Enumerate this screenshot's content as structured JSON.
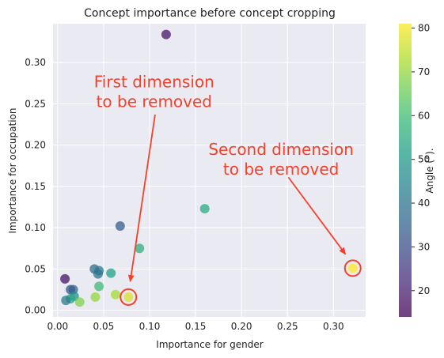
{
  "chart_data": {
    "type": "scatter",
    "title": "Concept importance before concept cropping",
    "xlabel": "Importance for gender",
    "ylabel": "Importance for occupation",
    "xlim": [
      -0.005,
      0.335
    ],
    "ylim": [
      -0.008,
      0.347
    ],
    "xticks": [
      "0.00",
      "0.05",
      "0.10",
      "0.15",
      "0.20",
      "0.25",
      "0.30"
    ],
    "yticks": [
      "0.00",
      "0.05",
      "0.10",
      "0.15",
      "0.20",
      "0.25",
      "0.30"
    ],
    "grid": true,
    "colorbar": {
      "label": "Angle (°).",
      "min": 14,
      "max": 81,
      "ticks": [
        "20",
        "30",
        "40",
        "50",
        "60",
        "70",
        "80"
      ],
      "colormap": "viridis"
    },
    "points": [
      {
        "x": 0.118,
        "y": 0.334,
        "angle": 18
      },
      {
        "x": 0.008,
        "y": 0.038,
        "angle": 17
      },
      {
        "x": 0.068,
        "y": 0.102,
        "angle": 34
      },
      {
        "x": 0.16,
        "y": 0.123,
        "angle": 55
      },
      {
        "x": 0.089,
        "y": 0.075,
        "angle": 56
      },
      {
        "x": 0.04,
        "y": 0.05,
        "angle": 38
      },
      {
        "x": 0.045,
        "y": 0.048,
        "angle": 42
      },
      {
        "x": 0.044,
        "y": 0.044,
        "angle": 40
      },
      {
        "x": 0.058,
        "y": 0.045,
        "angle": 52
      },
      {
        "x": 0.045,
        "y": 0.029,
        "angle": 60
      },
      {
        "x": 0.017,
        "y": 0.025,
        "angle": 36
      },
      {
        "x": 0.014,
        "y": 0.025,
        "angle": 33
      },
      {
        "x": 0.018,
        "y": 0.017,
        "angle": 48
      },
      {
        "x": 0.014,
        "y": 0.014,
        "angle": 54
      },
      {
        "x": 0.009,
        "y": 0.012,
        "angle": 42
      },
      {
        "x": 0.024,
        "y": 0.01,
        "angle": 68
      },
      {
        "x": 0.041,
        "y": 0.016,
        "angle": 70
      },
      {
        "x": 0.063,
        "y": 0.019,
        "angle": 72
      },
      {
        "x": 0.077,
        "y": 0.016,
        "angle": 77
      },
      {
        "x": 0.321,
        "y": 0.051,
        "angle": 81
      }
    ],
    "highlights": [
      {
        "x": 0.077,
        "y": 0.016
      },
      {
        "x": 0.321,
        "y": 0.051
      }
    ],
    "annotations": [
      {
        "text": [
          "First dimension",
          "to be removed"
        ],
        "tx": 0.105,
        "ty": 0.27,
        "arrow_from": [
          0.106,
          0.237
        ],
        "arrow_to": [
          0.079,
          0.035
        ]
      },
      {
        "text": [
          "Second dimension",
          "to be removed"
        ],
        "tx": 0.243,
        "ty": 0.188,
        "arrow_from": [
          0.251,
          0.161
        ],
        "arrow_to": [
          0.313,
          0.068
        ]
      }
    ]
  },
  "colors": {
    "plot_bg": "#eaeaf2",
    "grid": "#ffffff",
    "annotation": "#f5412a",
    "highlight_ring": "#f5412a"
  }
}
